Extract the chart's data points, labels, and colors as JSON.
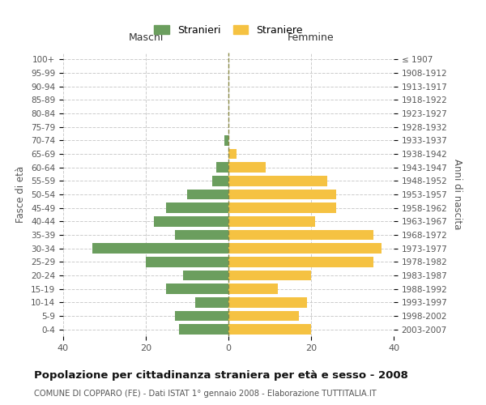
{
  "age_groups": [
    "100+",
    "95-99",
    "90-94",
    "85-89",
    "80-84",
    "75-79",
    "70-74",
    "65-69",
    "60-64",
    "55-59",
    "50-54",
    "45-49",
    "40-44",
    "35-39",
    "30-34",
    "25-29",
    "20-24",
    "15-19",
    "10-14",
    "5-9",
    "0-4"
  ],
  "birth_years": [
    "≤ 1907",
    "1908-1912",
    "1913-1917",
    "1918-1922",
    "1923-1927",
    "1928-1932",
    "1933-1937",
    "1938-1942",
    "1943-1947",
    "1948-1952",
    "1953-1957",
    "1958-1962",
    "1963-1967",
    "1968-1972",
    "1973-1977",
    "1978-1982",
    "1983-1987",
    "1988-1992",
    "1993-1997",
    "1998-2002",
    "2003-2007"
  ],
  "males": [
    0,
    0,
    0,
    0,
    0,
    0,
    1,
    0,
    3,
    4,
    10,
    15,
    18,
    13,
    33,
    20,
    11,
    15,
    8,
    13,
    12
  ],
  "females": [
    0,
    0,
    0,
    0,
    0,
    0,
    0,
    2,
    9,
    24,
    26,
    26,
    21,
    35,
    37,
    35,
    20,
    12,
    19,
    17,
    20
  ],
  "male_color": "#6b9e5e",
  "female_color": "#f5c242",
  "background_color": "#ffffff",
  "grid_color": "#cccccc",
  "title": "Popolazione per cittadinanza straniera per età e sesso - 2008",
  "subtitle": "COMUNE DI COPPARO (FE) - Dati ISTAT 1° gennaio 2008 - Elaborazione TUTTITALIA.IT",
  "xlabel_left": "Maschi",
  "xlabel_right": "Femmine",
  "ylabel_left": "Fasce di età",
  "ylabel_right": "Anni di nascita",
  "legend_male": "Stranieri",
  "legend_female": "Straniere",
  "xlim": 40
}
